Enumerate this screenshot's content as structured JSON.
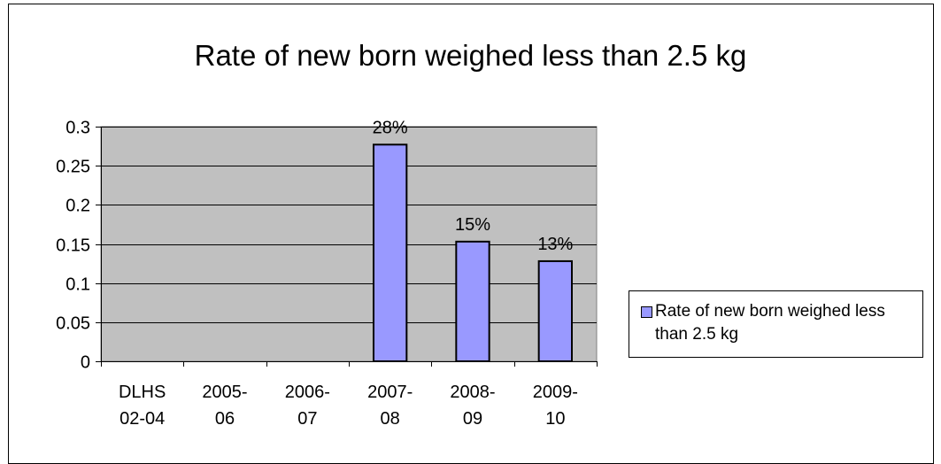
{
  "chart_data": {
    "type": "bar",
    "title": "Rate of new born weighed less than 2.5 kg",
    "categories": [
      [
        "DLHS",
        "02-04"
      ],
      [
        "2005-",
        "06"
      ],
      [
        "2006-",
        "07"
      ],
      [
        "2007-",
        "08"
      ],
      [
        "2008-",
        "09"
      ],
      [
        "2009-",
        "10"
      ]
    ],
    "series": [
      {
        "name": "Rate of new born weighed less than 2.5 kg",
        "values": [
          null,
          null,
          null,
          0.277,
          0.153,
          0.128
        ],
        "data_labels": [
          "",
          "",
          "",
          "28%",
          "15%",
          "13%"
        ],
        "color": "#9999ff"
      }
    ],
    "y_ticks": [
      "0",
      "0.05",
      "0.1",
      "0.15",
      "0.2",
      "0.25",
      "0.3"
    ],
    "ylim": [
      0,
      0.3
    ],
    "xlabel": "",
    "ylabel": "",
    "grid": true,
    "plot_background": "#c0c0c0",
    "legend_position": "right"
  }
}
